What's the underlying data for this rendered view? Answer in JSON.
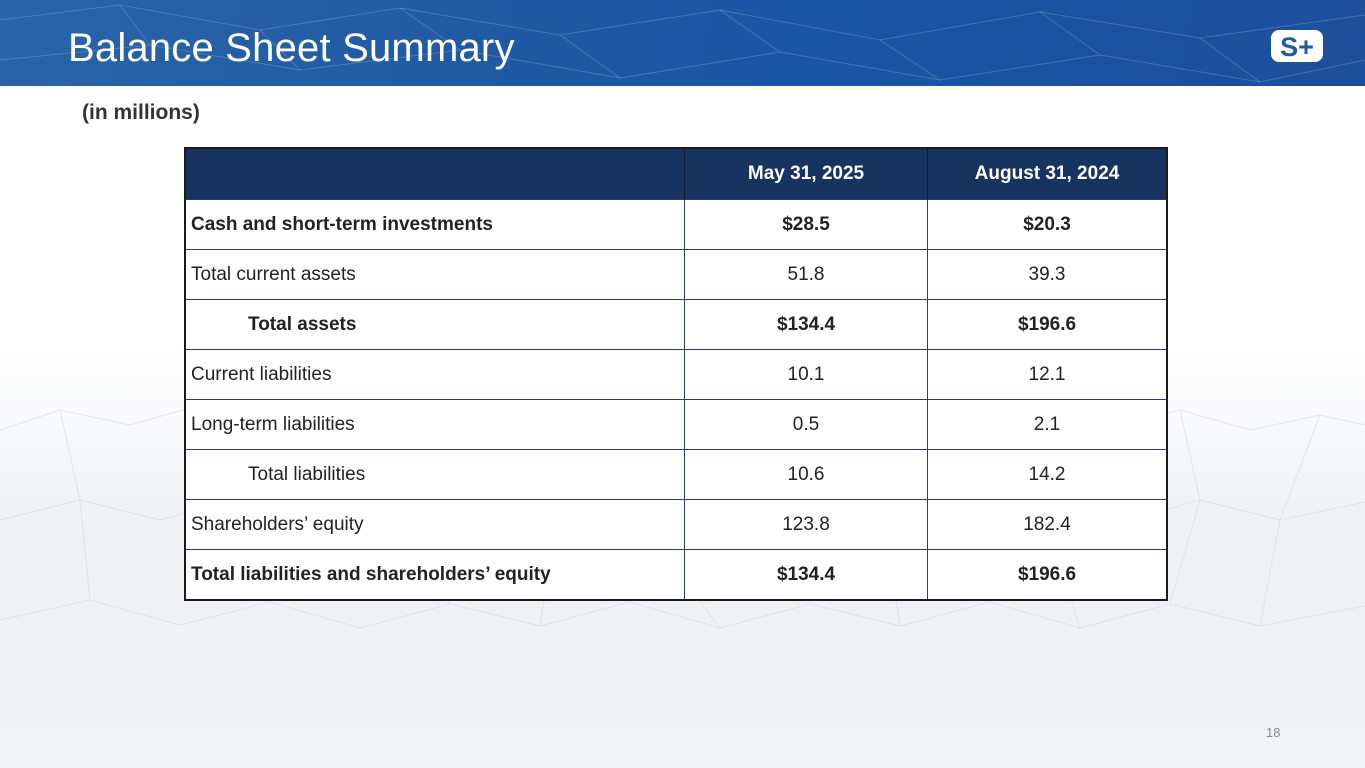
{
  "header": {
    "title": "Balance Sheet Summary",
    "logo_text": "S+"
  },
  "subtitle": "(in millions)",
  "table": {
    "columns": [
      "",
      "May 31, 2025",
      "August 31, 2024"
    ],
    "rows": [
      {
        "label": "Cash and short-term investments",
        "may_2025": "$28.5",
        "aug_2024": "$20.3"
      },
      {
        "label": "Total current assets",
        "may_2025": "51.8",
        "aug_2024": "39.3"
      },
      {
        "label": "Total assets",
        "may_2025": "$134.4",
        "aug_2024": "$196.6"
      },
      {
        "label": "Current liabilities",
        "may_2025": "10.1",
        "aug_2024": "12.1"
      },
      {
        "label": "Long-term liabilities",
        "may_2025": "0.5",
        "aug_2024": "2.1"
      },
      {
        "label": "Total liabilities",
        "may_2025": "10.6",
        "aug_2024": "14.2"
      },
      {
        "label": "Shareholders’ equity",
        "may_2025": "123.8",
        "aug_2024": "182.4"
      },
      {
        "label": "Total liabilities and shareholders’ equity",
        "may_2025": "$134.4",
        "aug_2024": "$196.6"
      }
    ]
  },
  "page_number": "18",
  "colors": {
    "banner": "#1f5aa3",
    "table_header": "#17335f"
  }
}
